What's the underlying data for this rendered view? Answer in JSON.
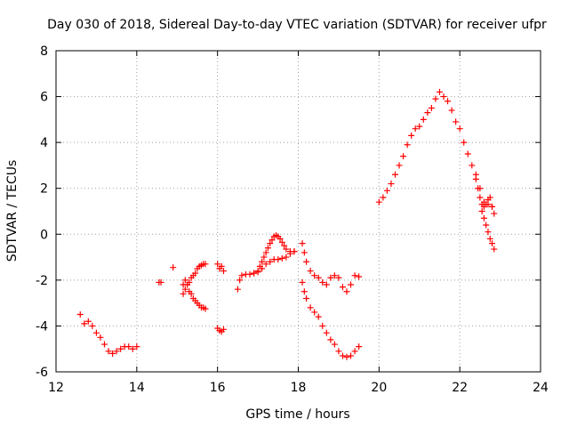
{
  "chart_data": {
    "type": "scatter",
    "title": "Day 030 of 2018, Sidereal Day-to-day VTEC variation (SDTVAR) for receiver ufpr",
    "xlabel": "GPS time / hours",
    "ylabel": "SDTVAR / TECUs",
    "xlim": [
      12,
      24
    ],
    "ylim": [
      -6,
      8
    ],
    "xticks": [
      "12",
      "14",
      "16",
      "18",
      "20",
      "22",
      "24"
    ],
    "yticks": [
      "-6",
      "-4",
      "-2",
      "0",
      "2",
      "4",
      "6",
      "8"
    ],
    "grid": true,
    "marker": "+",
    "marker_color": "#ff0000",
    "segments": [
      {
        "x": [
          12.6,
          12.7,
          12.8,
          12.9,
          13.0,
          13.1,
          13.2,
          13.3,
          13.4,
          13.5,
          13.6,
          13.7,
          13.8,
          13.9,
          14.0
        ],
        "y": [
          -3.5,
          -3.9,
          -3.8,
          -4.0,
          -4.3,
          -4.5,
          -4.8,
          -5.1,
          -5.2,
          -5.1,
          -5.0,
          -4.9,
          -4.9,
          -5.0,
          -4.9
        ]
      },
      {
        "x": [
          14.55,
          14.6
        ],
        "y": [
          -2.1,
          -2.1
        ]
      },
      {
        "x": [
          14.9
        ],
        "y": [
          -1.45
        ]
      },
      {
        "x": [
          15.15,
          15.2,
          15.25,
          15.3,
          15.35,
          15.4,
          15.45,
          15.5,
          15.55,
          15.6,
          15.65,
          15.7
        ],
        "y": [
          -2.2,
          -2.0,
          -2.2,
          -2.5,
          -2.6,
          -2.8,
          -2.9,
          -3.0,
          -3.1,
          -3.2,
          -3.2,
          -3.25
        ]
      },
      {
        "x": [
          15.15,
          15.2,
          15.25,
          15.3,
          15.35,
          15.4,
          15.45,
          15.5,
          15.55,
          15.6,
          15.65,
          15.7
        ],
        "y": [
          -2.6,
          -2.4,
          -2.2,
          -2.1,
          -1.9,
          -1.8,
          -1.7,
          -1.5,
          -1.4,
          -1.35,
          -1.3,
          -1.3
        ]
      },
      {
        "x": [
          16.0,
          16.05,
          16.1,
          16.15
        ],
        "y": [
          -1.3,
          -1.5,
          -1.4,
          -1.6
        ]
      },
      {
        "x": [
          16.0,
          16.05,
          16.1,
          16.15
        ],
        "y": [
          -4.1,
          -4.2,
          -4.25,
          -4.15
        ]
      },
      {
        "x": [
          16.5,
          16.55,
          16.6,
          16.7,
          16.8,
          16.9,
          17.0,
          17.1,
          17.2,
          17.3,
          17.4,
          17.5,
          17.6,
          17.7,
          17.8,
          17.9
        ],
        "y": [
          -2.4,
          -2.0,
          -1.8,
          -1.75,
          -1.75,
          -1.7,
          -1.65,
          -1.5,
          -1.3,
          -1.2,
          -1.1,
          -1.1,
          -1.05,
          -1.0,
          -0.85,
          -0.75
        ]
      },
      {
        "x": [
          16.9,
          17.0,
          17.05,
          17.1,
          17.15,
          17.2,
          17.25,
          17.3,
          17.35,
          17.4,
          17.45,
          17.5,
          17.55,
          17.6,
          17.65,
          17.7,
          17.8,
          17.9
        ],
        "y": [
          -1.7,
          -1.6,
          -1.4,
          -1.2,
          -1.0,
          -0.8,
          -0.6,
          -0.4,
          -0.25,
          -0.1,
          -0.05,
          -0.1,
          -0.2,
          -0.35,
          -0.5,
          -0.65,
          -0.75,
          -0.75
        ]
      },
      {
        "x": [
          18.1,
          18.15,
          18.2,
          18.3,
          18.4,
          18.5,
          18.6,
          18.7,
          18.8,
          18.9,
          19.0,
          19.1,
          19.2,
          19.3,
          19.4,
          19.5
        ],
        "y": [
          -0.4,
          -0.8,
          -1.2,
          -1.6,
          -1.8,
          -1.9,
          -2.1,
          -2.2,
          -1.9,
          -1.8,
          -1.9,
          -2.3,
          -2.5,
          -2.2,
          -1.8,
          -1.85
        ]
      },
      {
        "x": [
          18.1,
          18.15,
          18.2,
          18.3,
          18.4,
          18.5,
          18.6,
          18.7,
          18.8,
          18.9,
          19.0,
          19.1,
          19.2,
          19.3,
          19.4,
          19.5
        ],
        "y": [
          -2.1,
          -2.5,
          -2.8,
          -3.2,
          -3.4,
          -3.6,
          -4.0,
          -4.3,
          -4.6,
          -4.8,
          -5.1,
          -5.3,
          -5.35,
          -5.3,
          -5.1,
          -4.9
        ]
      },
      {
        "x": [
          20.0,
          20.1,
          20.2,
          20.3,
          20.4,
          20.5,
          20.6,
          20.7,
          20.8,
          20.9,
          21.0,
          21.1,
          21.2,
          21.3,
          21.4,
          21.5,
          21.6,
          21.7,
          21.8,
          21.9,
          22.0,
          22.1,
          22.2,
          22.3,
          22.4,
          22.5,
          22.6,
          22.7,
          22.8
        ],
        "y": [
          1.4,
          1.6,
          1.9,
          2.2,
          2.6,
          3.0,
          3.4,
          3.9,
          4.3,
          4.6,
          4.7,
          5.0,
          5.3,
          5.5,
          5.9,
          6.2,
          6.0,
          5.8,
          5.4,
          4.9,
          4.6,
          4.0,
          3.5,
          3.0,
          2.6,
          2.0,
          1.4,
          1.3,
          1.2
        ]
      },
      {
        "x": [
          22.4,
          22.45,
          22.5,
          22.55,
          22.6,
          22.65,
          22.7,
          22.75,
          22.8,
          22.85
        ],
        "y": [
          2.4,
          2.0,
          1.6,
          1.3,
          1.2,
          1.3,
          1.5,
          1.6,
          1.2,
          0.9
        ]
      },
      {
        "x": [
          22.55,
          22.6,
          22.65,
          22.7,
          22.75,
          22.8,
          22.85
        ],
        "y": [
          1.0,
          0.7,
          0.4,
          0.1,
          -0.2,
          -0.4,
          -0.65
        ]
      }
    ]
  }
}
